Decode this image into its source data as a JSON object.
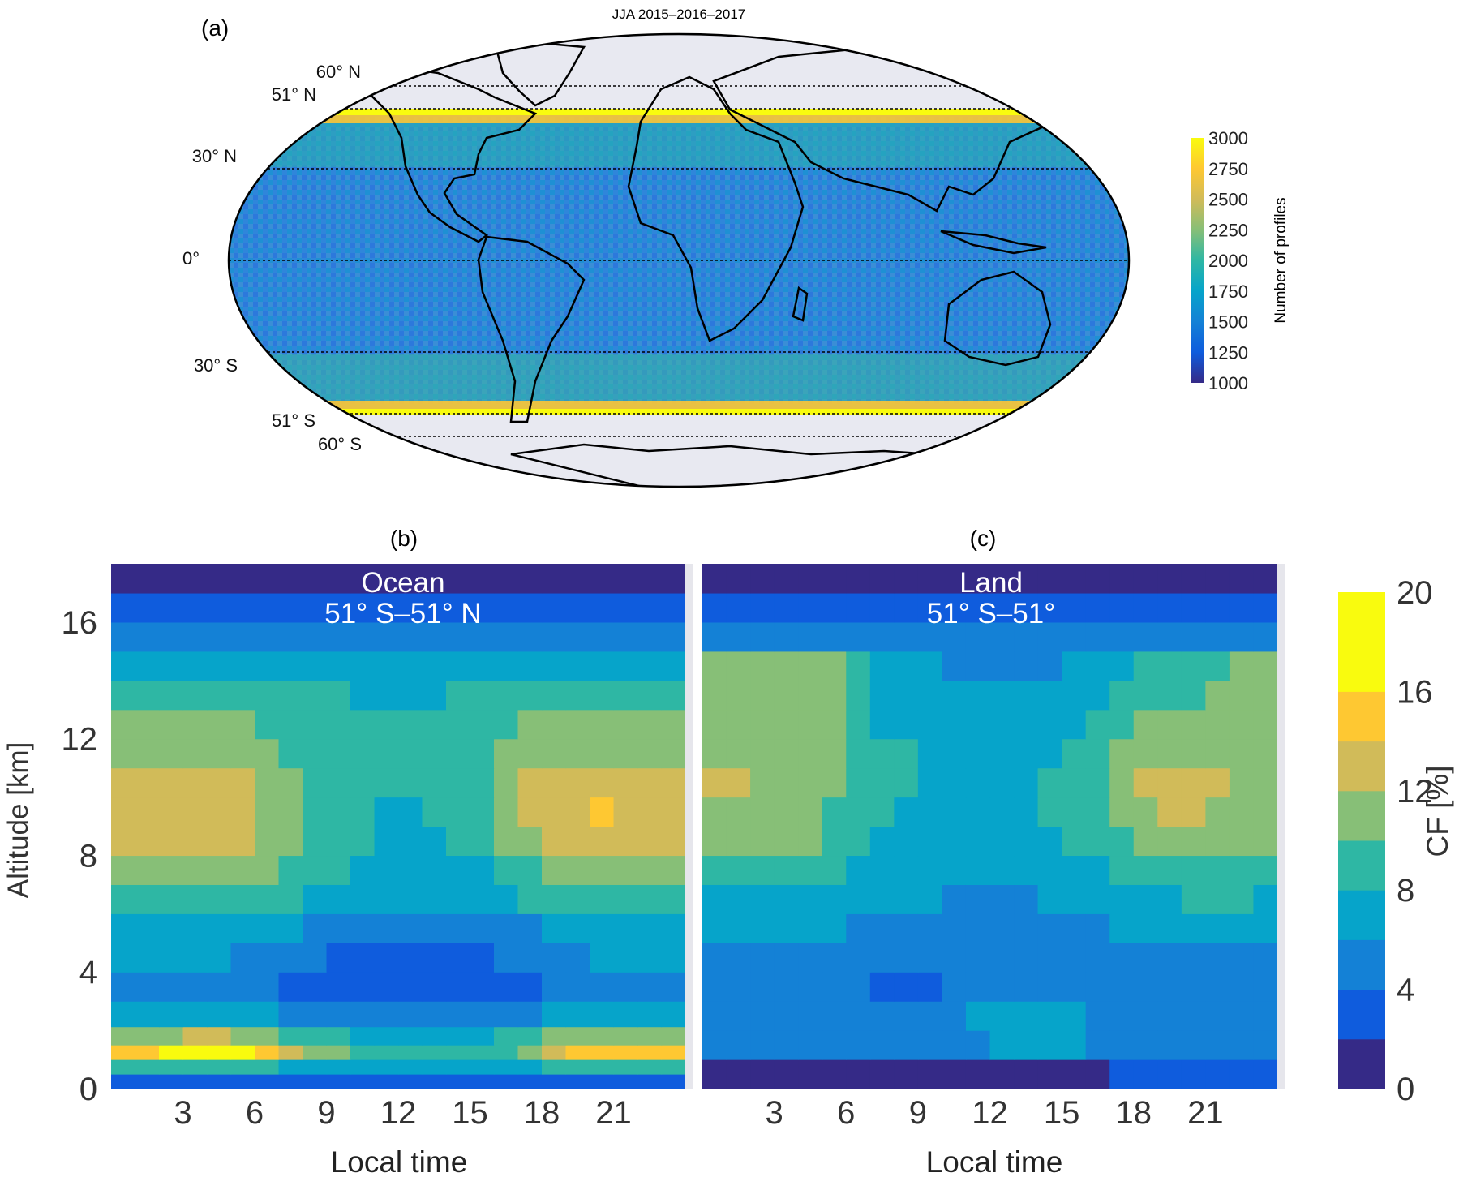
{
  "figure": {
    "panel_a_label": "(a)",
    "panel_b_label": "(b)",
    "panel_c_label": "(c)"
  },
  "colors": {
    "parula": [
      "#352a87",
      "#0f5cdd",
      "#1481d6",
      "#06a4ca",
      "#2eb7a4",
      "#87bf77",
      "#d1bb59",
      "#fec832",
      "#f9fb0e"
    ],
    "ocean_fill": "#3b7fd9",
    "polar_fill": "#e8e9f1"
  },
  "chart_data": [
    {
      "type": "heatmap",
      "title": "JJA 2015–2016–2017",
      "projection": "mollweide",
      "latitude_labels": [
        "60° N",
        "51° N",
        "30° N",
        "0°",
        "30° S",
        "51° S",
        "60° S"
      ],
      "latitude_values": [
        60,
        51,
        30,
        0,
        -30,
        -51,
        -60
      ],
      "sampled_band": [
        -51,
        51
      ],
      "colorbar": {
        "label": "Number of profiles",
        "ticks": [
          1000,
          1250,
          1500,
          1750,
          2000,
          2250,
          2500,
          2750,
          3000
        ],
        "range": [
          1000,
          3000
        ]
      },
      "description_values": {
        "tropics_typical": 1450,
        "mid_latitudes_typical": 1800,
        "band_edges_51": 3000
      }
    },
    {
      "type": "heatmap",
      "title": "",
      "annotation": [
        "Ocean",
        "51° S–51° N"
      ],
      "xlabel": "Local time",
      "ylabel": "Altitude [km]",
      "xticks": [
        3,
        6,
        9,
        12,
        15,
        18,
        21
      ],
      "xlim": [
        0,
        24
      ],
      "yticks": [
        0,
        4,
        8,
        12,
        16
      ],
      "ylim": [
        0,
        18
      ],
      "cloud_fraction_profile": [
        {
          "z": 0.25,
          "cf": [
            2,
            2,
            2,
            2,
            2,
            2,
            2,
            2,
            2,
            2,
            2,
            2,
            2,
            2,
            2,
            2,
            2,
            2,
            2,
            2,
            2,
            2,
            2,
            2
          ]
        },
        {
          "z": 0.75,
          "cf": [
            8,
            8,
            8,
            8,
            8,
            8,
            8,
            7,
            7,
            7,
            7,
            7,
            7,
            7,
            7,
            7,
            7,
            7,
            8,
            8,
            8,
            8,
            8,
            8
          ]
        },
        {
          "z": 1.25,
          "cf": [
            15,
            15,
            16,
            18,
            18,
            17,
            15,
            13,
            11,
            10,
            9,
            9,
            9,
            9,
            9,
            9,
            9,
            11,
            13,
            14,
            15,
            15,
            15,
            15
          ]
        },
        {
          "z": 1.75,
          "cf": [
            11,
            11,
            11,
            12,
            12,
            11,
            10,
            9,
            8,
            8,
            7,
            7,
            7,
            7,
            7,
            7,
            8,
            9,
            10,
            11,
            11,
            11,
            11,
            11
          ]
        },
        {
          "z": 2.5,
          "cf": [
            6,
            6,
            6,
            6,
            6,
            6,
            6,
            5,
            5,
            5,
            5,
            5,
            5,
            5,
            5,
            5,
            5,
            5,
            6,
            6,
            6,
            6,
            6,
            6
          ]
        },
        {
          "z": 3.5,
          "cf": [
            5,
            5,
            4,
            4,
            4,
            4,
            4,
            3,
            3,
            3,
            3,
            2,
            2,
            3,
            3,
            3,
            3,
            3,
            4,
            4,
            4,
            4,
            5,
            5
          ]
        },
        {
          "z": 4.5,
          "cf": [
            6,
            6,
            6,
            6,
            6,
            5,
            5,
            4,
            4,
            3,
            3,
            3,
            3,
            3,
            3,
            3,
            4,
            4,
            5,
            5,
            6,
            6,
            6,
            6
          ]
        },
        {
          "z": 5.5,
          "cf": [
            7,
            7,
            7,
            7,
            7,
            7,
            6,
            6,
            5,
            5,
            4,
            4,
            4,
            4,
            4,
            4,
            5,
            5,
            6,
            6,
            7,
            7,
            7,
            7
          ]
        },
        {
          "z": 6.5,
          "cf": [
            9,
            9,
            9,
            9,
            9,
            9,
            8,
            8,
            7,
            7,
            6,
            6,
            6,
            6,
            6,
            6,
            7,
            8,
            9,
            9,
            9,
            9,
            9,
            9
          ]
        },
        {
          "z": 7.5,
          "cf": [
            11,
            11,
            11,
            11,
            11,
            11,
            10,
            9,
            8,
            8,
            7,
            7,
            7,
            7,
            7,
            7,
            8,
            9,
            10,
            11,
            11,
            11,
            11,
            11
          ]
        },
        {
          "z": 8.5,
          "cf": [
            13,
            13,
            12,
            12,
            12,
            12,
            11,
            10,
            9,
            8,
            8,
            7,
            7,
            7,
            8,
            9,
            10,
            11,
            12,
            13,
            13,
            13,
            13,
            13
          ]
        },
        {
          "z": 9.5,
          "cf": [
            13,
            13,
            13,
            13,
            13,
            12,
            11,
            10,
            9,
            8,
            8,
            7,
            7,
            8,
            8,
            9,
            10,
            12,
            13,
            13,
            14,
            13,
            13,
            13
          ]
        },
        {
          "z": 10.5,
          "cf": [
            13,
            13,
            13,
            12,
            12,
            12,
            11,
            10,
            9,
            8,
            8,
            8,
            8,
            8,
            9,
            9,
            11,
            12,
            13,
            13,
            13,
            13,
            13,
            13
          ]
        },
        {
          "z": 11.5,
          "cf": [
            11,
            11,
            11,
            11,
            11,
            11,
            10,
            9,
            8,
            8,
            8,
            8,
            8,
            8,
            8,
            9,
            10,
            11,
            11,
            11,
            11,
            11,
            11,
            11
          ]
        },
        {
          "z": 12.5,
          "cf": [
            10,
            10,
            10,
            10,
            10,
            10,
            9,
            9,
            8,
            8,
            8,
            8,
            8,
            8,
            8,
            9,
            9,
            10,
            10,
            10,
            10,
            10,
            10,
            10
          ]
        },
        {
          "z": 13.5,
          "cf": [
            9,
            9,
            9,
            9,
            9,
            9,
            8,
            8,
            8,
            8,
            7,
            7,
            7,
            7,
            8,
            8,
            8,
            9,
            9,
            9,
            9,
            9,
            9,
            9
          ]
        },
        {
          "z": 14.5,
          "cf": [
            7,
            7,
            7,
            7,
            7,
            7,
            7,
            7,
            6,
            6,
            6,
            6,
            6,
            6,
            6,
            7,
            7,
            7,
            7,
            7,
            7,
            7,
            7,
            7
          ]
        },
        {
          "z": 15.5,
          "cf": [
            5,
            5,
            5,
            5,
            5,
            5,
            5,
            5,
            5,
            5,
            5,
            5,
            5,
            5,
            5,
            5,
            5,
            5,
            5,
            5,
            5,
            5,
            5,
            5
          ]
        },
        {
          "z": 16.5,
          "cf": [
            3,
            3,
            3,
            3,
            3,
            3,
            3,
            3,
            3,
            3,
            3,
            3,
            3,
            3,
            3,
            3,
            3,
            3,
            3,
            3,
            3,
            3,
            3,
            3
          ]
        },
        {
          "z": 17.5,
          "cf": [
            1,
            1,
            1,
            1,
            1,
            1,
            1,
            1,
            1,
            1,
            1,
            1,
            1,
            1,
            1,
            1,
            1,
            1,
            1,
            1,
            1,
            1,
            1,
            1
          ]
        }
      ]
    },
    {
      "type": "heatmap",
      "title": "",
      "annotation": [
        "Land",
        "51° S–51°"
      ],
      "xlabel": "Local time",
      "xticks": [
        3,
        6,
        9,
        12,
        15,
        18,
        21
      ],
      "xlim": [
        0,
        24
      ],
      "ylim": [
        0,
        18
      ],
      "cloud_fraction_profile": [
        {
          "z": 0.5,
          "cf": [
            1,
            1,
            1,
            1,
            1,
            1,
            1,
            1,
            1,
            1,
            1,
            1,
            1,
            1,
            1,
            1,
            1,
            2,
            2,
            2,
            2,
            2,
            2,
            2
          ]
        },
        {
          "z": 1.5,
          "cf": [
            4,
            4,
            4,
            4,
            4,
            4,
            4,
            4,
            4,
            5,
            5,
            5,
            6,
            6,
            6,
            6,
            5,
            5,
            4,
            4,
            4,
            4,
            4,
            4
          ]
        },
        {
          "z": 2.5,
          "cf": [
            4,
            4,
            4,
            4,
            4,
            4,
            4,
            4,
            4,
            4,
            5,
            6,
            6,
            7,
            7,
            6,
            5,
            5,
            4,
            4,
            4,
            4,
            4,
            4
          ]
        },
        {
          "z": 3.5,
          "cf": [
            4,
            4,
            4,
            4,
            4,
            4,
            4,
            3,
            2,
            3,
            4,
            4,
            5,
            5,
            5,
            5,
            4,
            4,
            4,
            4,
            4,
            4,
            4,
            4
          ]
        },
        {
          "z": 4.5,
          "cf": [
            5,
            5,
            5,
            5,
            5,
            5,
            5,
            4,
            4,
            4,
            4,
            4,
            4,
            4,
            4,
            4,
            4,
            5,
            5,
            5,
            5,
            5,
            5,
            5
          ]
        },
        {
          "z": 5.5,
          "cf": [
            6,
            6,
            6,
            6,
            6,
            6,
            5,
            5,
            5,
            5,
            5,
            5,
            5,
            5,
            5,
            5,
            5,
            6,
            6,
            6,
            6,
            6,
            6,
            6
          ]
        },
        {
          "z": 6.5,
          "cf": [
            7,
            7,
            7,
            7,
            7,
            7,
            6,
            6,
            6,
            6,
            5,
            5,
            5,
            5,
            6,
            6,
            6,
            7,
            7,
            7,
            8,
            8,
            8,
            7
          ]
        },
        {
          "z": 7.5,
          "cf": [
            8,
            8,
            8,
            8,
            8,
            8,
            7,
            7,
            6,
            6,
            6,
            6,
            6,
            6,
            6,
            7,
            7,
            8,
            8,
            9,
            9,
            9,
            9,
            8
          ]
        },
        {
          "z": 8.5,
          "cf": [
            10,
            10,
            10,
            10,
            10,
            9,
            8,
            7,
            7,
            7,
            7,
            7,
            7,
            7,
            7,
            8,
            8,
            9,
            10,
            10,
            10,
            10,
            10,
            10
          ]
        },
        {
          "z": 9.5,
          "cf": [
            11,
            11,
            10,
            10,
            10,
            9,
            8,
            8,
            7,
            7,
            7,
            7,
            7,
            7,
            8,
            8,
            9,
            10,
            11,
            12,
            12,
            11,
            11,
            11
          ]
        },
        {
          "z": 10.5,
          "cf": [
            12,
            12,
            11,
            11,
            11,
            10,
            9,
            8,
            8,
            7,
            7,
            7,
            7,
            7,
            8,
            8,
            9,
            10,
            12,
            13,
            13,
            12,
            11,
            11
          ]
        },
        {
          "z": 11.5,
          "cf": [
            11,
            11,
            10,
            10,
            11,
            10,
            9,
            8,
            8,
            7,
            7,
            7,
            7,
            7,
            7,
            8,
            9,
            10,
            11,
            11,
            11,
            11,
            11,
            11
          ]
        },
        {
          "z": 12.5,
          "cf": [
            11,
            11,
            10,
            10,
            11,
            10,
            8,
            7,
            7,
            6,
            6,
            6,
            6,
            6,
            7,
            7,
            8,
            9,
            10,
            10,
            10,
            10,
            11,
            11
          ]
        },
        {
          "z": 13.5,
          "cf": [
            11,
            11,
            10,
            11,
            11,
            10,
            8,
            7,
            6,
            6,
            6,
            6,
            6,
            6,
            6,
            6,
            7,
            8,
            9,
            9,
            9,
            10,
            11,
            11
          ]
        },
        {
          "z": 14.5,
          "cf": [
            10,
            10,
            10,
            11,
            11,
            10,
            8,
            7,
            6,
            6,
            5,
            5,
            5,
            5,
            5,
            6,
            6,
            7,
            8,
            8,
            8,
            9,
            10,
            10
          ]
        },
        {
          "z": 15.5,
          "cf": [
            5,
            5,
            5,
            5,
            5,
            5,
            5,
            5,
            4,
            4,
            4,
            4,
            4,
            4,
            4,
            4,
            4,
            4,
            5,
            5,
            5,
            5,
            5,
            5
          ]
        },
        {
          "z": 16.5,
          "cf": [
            3,
            3,
            3,
            3,
            3,
            3,
            3,
            3,
            3,
            3,
            3,
            3,
            3,
            3,
            3,
            3,
            3,
            3,
            3,
            3,
            3,
            3,
            3,
            3
          ]
        },
        {
          "z": 17.5,
          "cf": [
            1,
            1,
            1,
            1,
            1,
            1,
            1,
            1,
            1,
            1,
            1,
            1,
            1,
            1,
            1,
            1,
            1,
            1,
            1,
            1,
            1,
            1,
            1,
            1
          ]
        }
      ]
    },
    {
      "type": "colorbar",
      "label": "CF [%]",
      "ticks": [
        0,
        4,
        8,
        12,
        16,
        20
      ],
      "range": [
        0,
        20
      ],
      "levels": 10
    }
  ]
}
